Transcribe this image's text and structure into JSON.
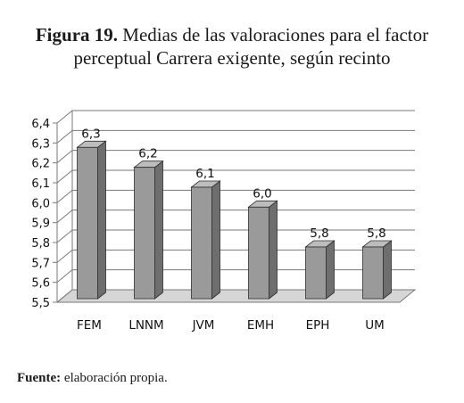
{
  "figure": {
    "number": "Figura 19.",
    "title_line1": "Medias de las valoraciones para el factor",
    "title_line2": "perceptual Carrera exigente, según recinto"
  },
  "source": {
    "label": "Fuente:",
    "text": "elaboración propia."
  },
  "chart_data": {
    "type": "bar",
    "categories": [
      "FEM",
      "LNNM",
      "JVM",
      "EMH",
      "EPH",
      "UM"
    ],
    "values": [
      6.3,
      6.2,
      6.1,
      6.0,
      5.8,
      5.8
    ],
    "data_labels": [
      "6,3",
      "6,2",
      "6,1",
      "6,0",
      "5,8",
      "5,8"
    ],
    "ylim": [
      5.5,
      6.4
    ],
    "yticks": [
      {
        "value": 5.5,
        "label": "5,5"
      },
      {
        "value": 5.6,
        "label": "5,6"
      },
      {
        "value": 5.7,
        "label": "5,7"
      },
      {
        "value": 5.8,
        "label": "5,8"
      },
      {
        "value": 5.9,
        "label": "5,9"
      },
      {
        "value": 6.0,
        "label": "6,0"
      },
      {
        "value": 6.1,
        "label": "6,1"
      },
      {
        "value": 6.2,
        "label": "6,2"
      },
      {
        "value": 6.3,
        "label": "6,3"
      },
      {
        "value": 6.4,
        "label": "6,4"
      }
    ],
    "grid": true,
    "style": "3d",
    "colors": {
      "bar_front": "#9a9a9a",
      "bar_side": "#6e6e6e",
      "bar_top": "#bdbdbd",
      "grid": "#7a7a7a",
      "floor": "#d6d6d6"
    }
  }
}
